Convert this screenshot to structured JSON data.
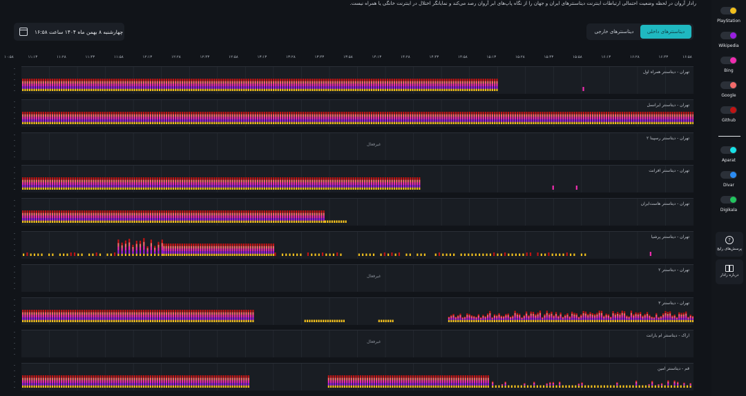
{
  "header": {
    "description": "رادار آروان در لحظه وضعیت احتمالی ارتباطات اینترنت دیتاسنترهای ایران و جهان را از نگاه پاپ‌های ابر آروان رصد می‌کند و نمایانگر اختلال در اینترنت خانگی یا همراه نیست.",
    "date": "چهارشنبه ۸ بهمن ماه ۱۴۰۴ ساعت ۱۶:۵۸"
  },
  "tabs": [
    {
      "label": "دیتاسنترهای داخلی",
      "active": true
    },
    {
      "label": "دیتاسنترهای خارجی",
      "active": false
    }
  ],
  "time_axis": [
    "۱۰:۵۸",
    "۱۱:۱۳",
    "۱۱:۲۸",
    "۱۱:۴۳",
    "۱۱:۵۸",
    "۱۲:۱۳",
    "۱۲:۲۸",
    "۱۲:۴۳",
    "۱۲:۵۸",
    "۱۳:۱۳",
    "۱۳:۲۸",
    "۱۳:۴۳",
    "۱۳:۵۸",
    "۱۴:۱۳",
    "۱۴:۲۸",
    "۱۴:۴۳",
    "۱۴:۵۸",
    "۱۵:۱۳",
    "۱۵:۲۸",
    "۱۵:۴۳",
    "۱۵:۵۸",
    "۱۶:۱۳",
    "۱۶:۲۸",
    "۱۶:۴۳",
    "۱۶:۵۸"
  ],
  "datacenters": [
    {
      "name": "تهران - دیتاسنتر همراه اول",
      "segments": [
        [
          0,
          0.71,
          "full"
        ]
      ],
      "pattern": "none",
      "specks": [
        0.835
      ],
      "nodata": ""
    },
    {
      "name": "تهران - دیتاسنتر ایرانسل",
      "segments": [
        [
          0,
          1.0,
          "full"
        ]
      ],
      "pattern": "none",
      "specks": [],
      "nodata": ""
    },
    {
      "name": "تهران - دیتاسنتر رسپینا ۲",
      "segments": [],
      "pattern": "none",
      "specks": [],
      "nodata": "غیرفعال"
    },
    {
      "name": "تهران - دیتاسنتر افرانت",
      "segments": [
        [
          0,
          0.595,
          "full"
        ]
      ],
      "pattern": "none",
      "specks": [
        0.79,
        0.825
      ],
      "nodata": ""
    },
    {
      "name": "تهران - دیتاسنتر هاست‌ایران",
      "segments": [
        [
          0,
          0.45,
          "full"
        ],
        [
          0.45,
          0.485,
          "yellow"
        ]
      ],
      "pattern": "none",
      "specks": [],
      "nodata": ""
    },
    {
      "name": "تهران - دیتاسنتر پرشیا",
      "segments": [
        [
          0.21,
          0.375,
          "full"
        ]
      ],
      "pattern": "sparse",
      "specks": [
        0.935
      ],
      "nodata": ""
    },
    {
      "name": "تهران - دیتاسنتر ۲",
      "segments": [],
      "pattern": "none",
      "specks": [],
      "nodata": "غیرفعال"
    },
    {
      "name": "تهران - دیتاسنتر ۳",
      "segments": [
        [
          0,
          0.345,
          "full"
        ],
        [
          0.42,
          0.48,
          "yellow"
        ],
        [
          0.53,
          0.555,
          "yellow"
        ]
      ],
      "pattern": "noisy",
      "specks": [],
      "nodata": ""
    },
    {
      "name": "اراک - دیتاسنتر ام بارانت",
      "segments": [],
      "pattern": "none",
      "specks": [],
      "nodata": "غیرفعال"
    },
    {
      "name": "قم - دیتاسنتر امین",
      "segments": [
        [
          0,
          0.34,
          "full"
        ],
        [
          0.455,
          0.695,
          "full"
        ]
      ],
      "pattern": "tail",
      "specks": [],
      "nodata": ""
    }
  ],
  "services": [
    {
      "name": "PlayStation",
      "color": "#f2c01d"
    },
    {
      "name": "Wikipedia",
      "color": "#9a1fe0"
    },
    {
      "name": "Bing",
      "color": "#f02db0"
    },
    {
      "name": "Google",
      "color": "#f26a6a"
    },
    {
      "name": "Github",
      "color": "#c01414"
    },
    {
      "name": "Aparat",
      "color": "#18e1e6"
    },
    {
      "name": "Divar",
      "color": "#2b8cf2"
    },
    {
      "name": "Digikala",
      "color": "#22c55e"
    }
  ],
  "help": {
    "label": "پرسش‌های رایج"
  },
  "guide": {
    "label": "درباره رادار"
  }
}
